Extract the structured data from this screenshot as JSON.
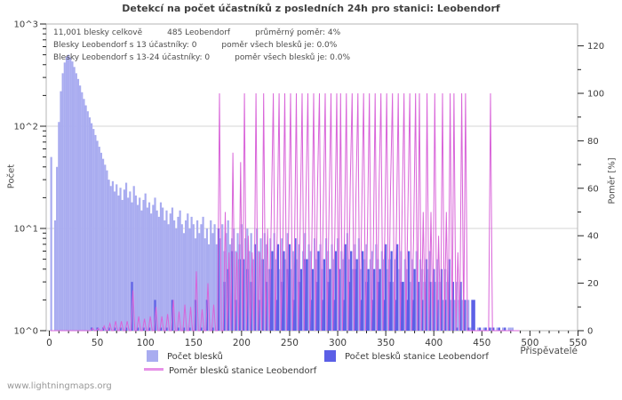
{
  "title": "Detekcí na počet účastníků z posledních 24h pro stanici: Leobendorf",
  "annotations": {
    "lines": [
      [
        "11,001 blesky celkově",
        "485 Leobendorf",
        "průměrný poměr: 4%"
      ],
      [
        "Blesky Leobendorf s 13 účastníky: 0",
        "poměr všech blesků je: 0.0%"
      ],
      [
        "Blesky Leobendorf s 13-24 účastníky: 0",
        "poměr všech blesků je: 0.0%"
      ]
    ]
  },
  "axes": {
    "left": {
      "label": "Počet",
      "ticks": [
        "10^0",
        "10^1",
        "10^2",
        "10^3"
      ],
      "scale": "log"
    },
    "right": {
      "label": "Poměr [%]",
      "ticks": [
        0,
        20,
        40,
        60,
        80,
        100,
        120
      ],
      "minor_step": 10
    },
    "x": {
      "label": "Přispěvatelé",
      "ticks": [
        0,
        50,
        100,
        150,
        200,
        250,
        300,
        350,
        400,
        450,
        500,
        550
      ],
      "minor_step": 10,
      "max": 550
    }
  },
  "legend": {
    "position": "bottom",
    "items": [
      {
        "label": "Počet blesků",
        "color": "#a9acf0",
        "type": "box"
      },
      {
        "label": "Počet blesků stanice Leobendorf",
        "color": "#5b5fe6",
        "type": "box"
      },
      {
        "label": "Poměr blesků stanice Leobendorf",
        "color": "#e792e7",
        "type": "line"
      }
    ]
  },
  "footer": "www.lightningmaps.org",
  "colors": {
    "bar_total": "#a9acf0",
    "bar_station": "#5b5fe6",
    "ratio_line": "#d965d9",
    "grid": "#d4d4d4",
    "frame": "#b5b5b5",
    "tick": "#222222",
    "tick_label": "#3c3c3c"
  },
  "chart_data": {
    "type": "bar",
    "title": "Detekcí na počet účastníků z posledních 24h pro stanici: Leobendorf",
    "xlabel": "Přispěvatelé",
    "ylabel_left": "Počet",
    "ylabel_right": "Poměr [%]",
    "x_start": 0,
    "x_step": 2,
    "xlim": [
      0,
      550
    ],
    "ylim_left_log10": [
      0,
      3
    ],
    "ylim_right": [
      0,
      130
    ],
    "grid": "horizontal-only",
    "series": [
      {
        "name": "Počet blesků",
        "type": "bar",
        "axis": "left",
        "color": "#a9acf0",
        "values": [
          0,
          50,
          0,
          12,
          40,
          110,
          220,
          330,
          420,
          480,
          500,
          470,
          430,
          380,
          330,
          290,
          250,
          215,
          185,
          160,
          140,
          122,
          107,
          94,
          82,
          72,
          63,
          55,
          48,
          42,
          37,
          30,
          26,
          29,
          23,
          27,
          21,
          25,
          19,
          24,
          28,
          20,
          23,
          18,
          26,
          21,
          17,
          20,
          15,
          19,
          22,
          16,
          18,
          14,
          17,
          20,
          15,
          13,
          18,
          16,
          12,
          15,
          11,
          14,
          16,
          12,
          10,
          13,
          15,
          11,
          9,
          12,
          14,
          10,
          13,
          11,
          8,
          12,
          9,
          11,
          13,
          8,
          10,
          7,
          12,
          9,
          11,
          7,
          10,
          8,
          11,
          6,
          9,
          12,
          7,
          8,
          10,
          6,
          9,
          7,
          11,
          5,
          8,
          10,
          6,
          9,
          5,
          7,
          10,
          6,
          8,
          5,
          9,
          7,
          4,
          8,
          6,
          9,
          5,
          7,
          4,
          8,
          6,
          5,
          9,
          7,
          4,
          6,
          8,
          5,
          7,
          4,
          6,
          9,
          5,
          7,
          6,
          4,
          8,
          5,
          6,
          7,
          4,
          5,
          8,
          6,
          4,
          7,
          5,
          6,
          8,
          4,
          6,
          5,
          7,
          9,
          5,
          6,
          4,
          7,
          5,
          8,
          4,
          6,
          5,
          7,
          4,
          5,
          6,
          4,
          7,
          5,
          4,
          6,
          5,
          7,
          4,
          5,
          6,
          3,
          5,
          7,
          4,
          6,
          3,
          5,
          4,
          6,
          3,
          5,
          4,
          6,
          3,
          5,
          4,
          3,
          5,
          4,
          6,
          3,
          4,
          3,
          5,
          3,
          4,
          2,
          4,
          3,
          5,
          2,
          3,
          2,
          3,
          2,
          3,
          2,
          2,
          2,
          2,
          1,
          2,
          2,
          0,
          1,
          1,
          0,
          1,
          1,
          0,
          1,
          1,
          1,
          0,
          1,
          1,
          0,
          1,
          1,
          0,
          1,
          1,
          1,
          0,
          0,
          0
        ]
      },
      {
        "name": "Počet blesků stanice Leobendorf",
        "type": "bar",
        "axis": "left",
        "color": "#5b5fe6",
        "values": [
          0,
          0,
          0,
          0,
          0,
          0,
          0,
          0,
          0,
          0,
          0,
          0,
          0,
          0,
          0,
          0,
          0,
          0,
          0,
          0,
          0,
          0,
          1,
          0,
          0,
          1,
          0,
          0,
          1,
          0,
          0,
          1,
          0,
          0,
          1,
          0,
          0,
          1,
          0,
          0,
          1,
          0,
          0,
          3,
          0,
          0,
          1,
          0,
          0,
          1,
          0,
          0,
          1,
          0,
          0,
          2,
          0,
          0,
          1,
          0,
          0,
          1,
          0,
          0,
          2,
          0,
          0,
          1,
          0,
          0,
          1,
          0,
          0,
          1,
          0,
          0,
          2,
          0,
          0,
          1,
          0,
          0,
          2,
          0,
          0,
          1,
          0,
          0,
          10,
          0,
          0,
          3,
          0,
          4,
          0,
          6,
          0,
          2,
          0,
          5,
          0,
          5,
          0,
          4,
          0,
          3,
          0,
          7,
          0,
          2,
          0,
          5,
          0,
          3,
          0,
          4,
          6,
          0,
          2,
          7,
          0,
          3,
          6,
          0,
          4,
          7,
          0,
          2,
          8,
          0,
          3,
          4,
          0,
          5,
          5,
          0,
          2,
          4,
          0,
          3,
          6,
          0,
          2,
          5,
          0,
          3,
          4,
          0,
          2,
          6,
          0,
          4,
          0,
          2,
          7,
          0,
          3,
          6,
          0,
          4,
          5,
          0,
          2,
          6,
          0,
          3,
          4,
          0,
          2,
          4,
          0,
          3,
          4,
          0,
          2,
          7,
          0,
          3,
          6,
          0,
          2,
          7,
          0,
          3,
          3,
          0,
          2,
          6,
          0,
          2,
          4,
          0,
          3,
          0,
          2,
          0,
          5,
          0,
          3,
          0,
          4,
          0,
          2,
          0,
          4,
          0,
          2,
          0,
          5,
          0,
          3,
          0,
          1,
          0,
          3,
          0,
          2,
          0,
          1,
          0,
          2,
          2,
          0,
          0,
          1,
          0,
          0,
          1,
          0,
          1,
          0,
          1,
          0,
          0,
          1,
          0,
          0,
          1,
          0,
          0,
          0,
          0,
          0,
          0,
          0
        ]
      },
      {
        "name": "Poměr blesků stanice Leobendorf",
        "type": "line",
        "axis": "right",
        "color": "#d965d9",
        "unit": "%",
        "values": [
          0,
          0,
          0,
          0,
          0,
          0,
          0,
          0,
          0,
          0,
          0,
          0,
          0,
          0,
          0,
          0,
          0,
          0,
          0,
          0,
          0,
          0,
          1,
          0,
          0,
          1,
          0,
          0,
          2,
          0,
          0,
          3,
          0,
          0,
          4,
          0,
          0,
          4,
          0,
          0,
          4,
          0,
          0,
          17,
          0,
          0,
          6,
          0,
          0,
          5,
          0,
          0,
          6,
          0,
          0,
          10,
          0,
          0,
          6,
          0,
          0,
          7,
          0,
          0,
          13,
          0,
          0,
          8,
          0,
          0,
          11,
          0,
          0,
          10,
          0,
          0,
          25,
          0,
          0,
          9,
          0,
          0,
          20,
          0,
          0,
          11,
          0,
          0,
          100,
          0,
          0,
          50,
          0,
          33,
          0,
          75,
          0,
          33,
          0,
          71,
          0,
          100,
          0,
          40,
          0,
          33,
          0,
          100,
          0,
          33,
          0,
          100,
          0,
          43,
          0,
          50,
          100,
          0,
          40,
          100,
          0,
          38,
          100,
          0,
          44,
          100,
          0,
          33,
          100,
          0,
          43,
          100,
          0,
          56,
          100,
          0,
          33,
          100,
          0,
          60,
          100,
          0,
          50,
          100,
          0,
          50,
          100,
          0,
          40,
          100,
          0,
          100,
          0,
          40,
          100,
          0,
          60,
          100,
          0,
          57,
          100,
          0,
          50,
          100,
          0,
          43,
          100,
          0,
          33,
          100,
          0,
          60,
          100,
          0,
          40,
          100,
          0,
          60,
          100,
          0,
          40,
          100,
          0,
          50,
          100,
          0,
          50,
          100,
          0,
          40,
          100,
          0,
          100,
          0,
          50,
          0,
          100,
          0,
          50,
          0,
          100,
          0,
          40,
          0,
          100,
          0,
          50,
          0,
          100,
          0,
          100,
          0,
          33,
          0,
          100,
          0,
          100,
          0,
          0,
          0,
          0,
          0,
          0,
          0,
          0,
          0,
          0,
          0,
          0,
          100,
          0,
          0,
          0,
          0,
          0,
          0,
          0,
          0,
          0,
          0,
          0,
          0,
          0,
          0,
          0
        ]
      }
    ],
    "stats": {
      "total_strikes": "11,001",
      "station_strikes": 485,
      "average_ratio_percent": 4
    }
  }
}
